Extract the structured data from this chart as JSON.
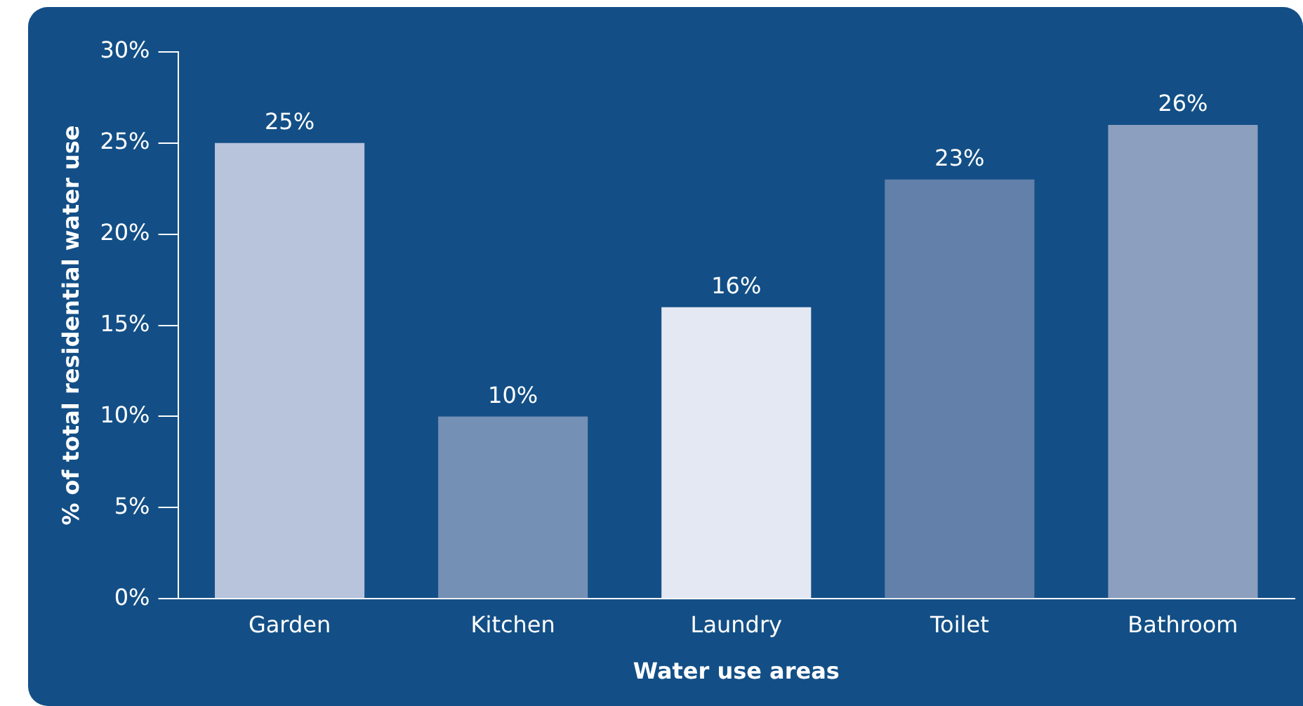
{
  "chart_data": {
    "type": "bar",
    "xlabel": "Water use areas",
    "ylabel": "% of total residential water use",
    "categories": [
      "Garden",
      "Kitchen",
      "Laundry",
      "Toilet",
      "Bathroom"
    ],
    "values": [
      25,
      10,
      16,
      23,
      26
    ],
    "colors": [
      "#b8c3dc",
      "#7590b5",
      "#e3e8f2",
      "#6280aa",
      "#8c9fbf"
    ],
    "value_labels": [
      "25%",
      "10%",
      "16%",
      "23%",
      "26%"
    ],
    "ylim": [
      0,
      30
    ],
    "yticks": [
      {
        "value": 0,
        "label": "0%"
      },
      {
        "value": 5,
        "label": "5%"
      },
      {
        "value": 10,
        "label": "10%"
      },
      {
        "value": 15,
        "label": "15%"
      },
      {
        "value": 20,
        "label": "20%"
      },
      {
        "value": 25,
        "label": "25%"
      },
      {
        "value": 30,
        "label": "30%"
      }
    ],
    "grid": false,
    "legend": false
  }
}
